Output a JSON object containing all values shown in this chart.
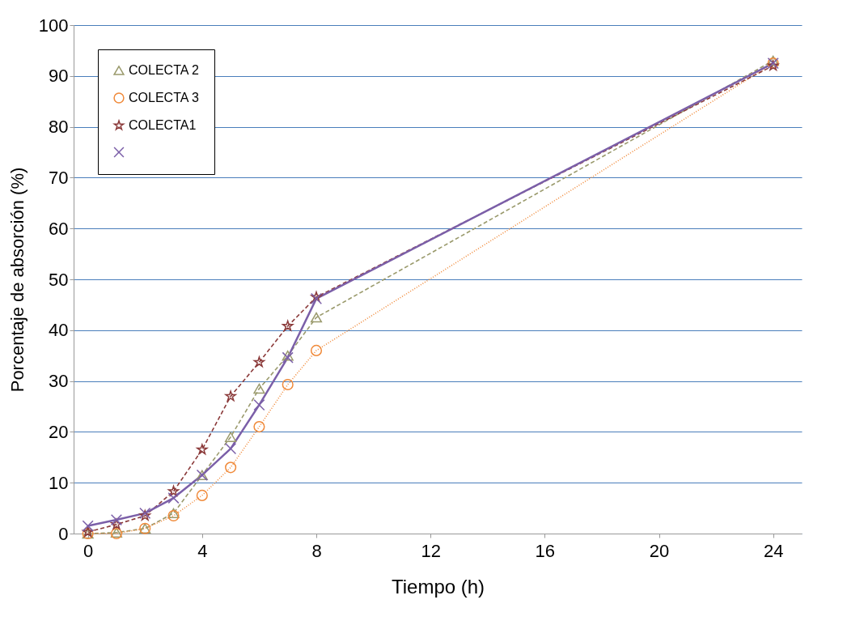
{
  "chart_data": {
    "type": "line",
    "xlabel": "Tiempo (h)",
    "ylabel": "Porcentaje de absorción (%)",
    "x": [
      0,
      1,
      2,
      3,
      4,
      5,
      6,
      7,
      8,
      24
    ],
    "series": [
      {
        "name": "COLECTA 2",
        "color": "#9a9a6c",
        "marker": "triangle",
        "line_style": "dashed",
        "values": [
          0,
          0.2,
          1,
          4,
          11.5,
          19,
          28.5,
          35,
          42.5,
          93
        ]
      },
      {
        "name": "COLECTA 3",
        "color": "#f08a3a",
        "marker": "circle",
        "line_style": "dotted",
        "values": [
          0,
          0,
          1,
          3.5,
          7.5,
          13,
          21,
          29.3,
          36,
          92.5
        ]
      },
      {
        "name": "COLECTA1",
        "color": "#8b3a3a",
        "marker": "star",
        "line_style": "dashed",
        "values": [
          0.3,
          1.8,
          3.5,
          8.3,
          16.5,
          27,
          33.7,
          40.8,
          46.5,
          92
        ]
      },
      {
        "color": "#7b5fa8",
        "marker": "cross",
        "line_style": "solid",
        "values": [
          1.5,
          2.7,
          4,
          7,
          11.5,
          16.7,
          25.3,
          34.6,
          46.2,
          92.5
        ]
      }
    ],
    "xlim": [
      -0.5,
      25
    ],
    "xticks": [
      0,
      4,
      8,
      12,
      16,
      20,
      24
    ],
    "ylim": [
      0,
      100
    ],
    "yticks": [
      0,
      10,
      20,
      30,
      40,
      50,
      60,
      70,
      80,
      90,
      100
    ],
    "grid": "y",
    "legend": "top left"
  }
}
